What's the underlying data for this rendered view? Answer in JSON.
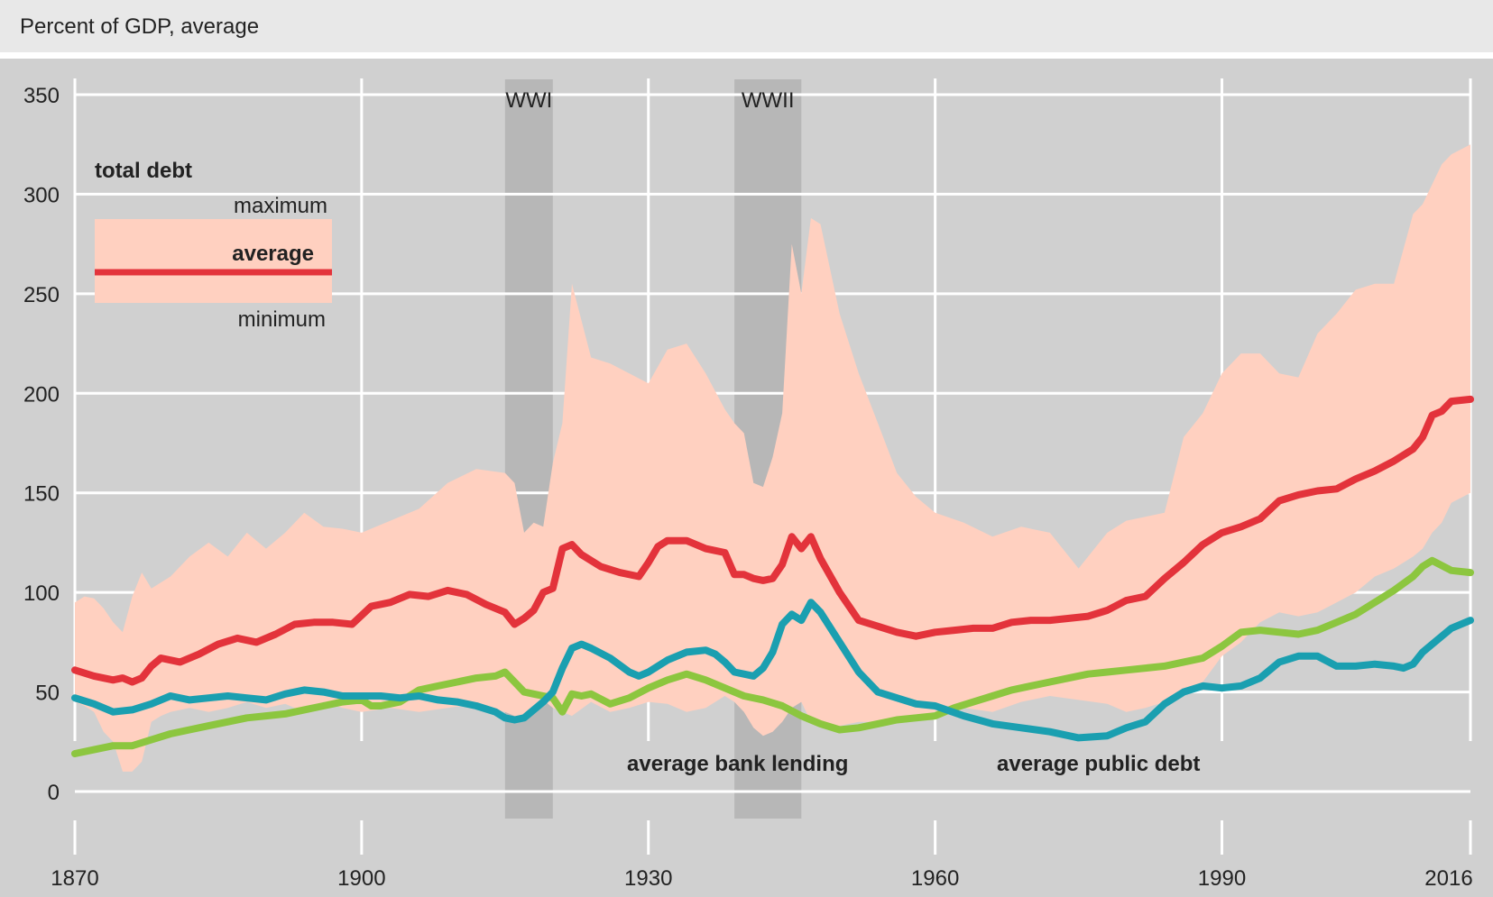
{
  "header": {
    "subtitle": "Percent of GDP, average"
  },
  "colors": {
    "total_debt": "#e3333b",
    "bank_lending": "#1a9fb0",
    "public_debt": "#8cc63f",
    "band": "#ffd0c0",
    "war_shade": "#b7b7b7",
    "background": "#d0d0d0",
    "grid": "#ffffff"
  },
  "chart_data": {
    "type": "line",
    "title": "",
    "subtitle": "Percent of GDP, average",
    "xlim": [
      1870,
      2016
    ],
    "ylim": [
      0,
      350
    ],
    "x_ticks": [
      1870,
      1900,
      1930,
      1960,
      1990,
      2016
    ],
    "y_ticks": [
      0,
      50,
      100,
      150,
      200,
      250,
      300,
      350
    ],
    "grid": true,
    "shaded_periods": [
      {
        "label": "WWI",
        "start": 1915,
        "end": 1920
      },
      {
        "label": "WWII",
        "start": 1939,
        "end": 1946
      }
    ],
    "legend": {
      "title": "total debt",
      "maximum": "maximum",
      "average": "average",
      "minimum": "minimum",
      "placement": "top-left"
    },
    "annotations": {
      "bank_lending": "average bank lending",
      "public_debt": "average public debt"
    },
    "band": {
      "name": "total debt range",
      "x": [
        1870,
        1871,
        1872,
        1873,
        1874,
        1875,
        1876,
        1877,
        1878,
        1879,
        1880,
        1882,
        1884,
        1886,
        1888,
        1890,
        1892,
        1894,
        1896,
        1898,
        1900,
        1903,
        1906,
        1909,
        1912,
        1915,
        1916,
        1917,
        1918,
        1919,
        1920,
        1921,
        1922,
        1924,
        1926,
        1928,
        1930,
        1932,
        1934,
        1936,
        1938,
        1939,
        1940,
        1941,
        1942,
        1943,
        1944,
        1945,
        1946,
        1947,
        1948,
        1950,
        1952,
        1954,
        1956,
        1958,
        1960,
        1963,
        1966,
        1969,
        1972,
        1975,
        1978,
        1980,
        1982,
        1984,
        1986,
        1988,
        1990,
        1992,
        1994,
        1996,
        1998,
        2000,
        2002,
        2004,
        2006,
        2008,
        2010,
        2011,
        2012,
        2013,
        2014,
        2016
      ],
      "max": [
        95,
        98,
        97,
        92,
        85,
        80,
        98,
        110,
        102,
        105,
        108,
        118,
        125,
        118,
        130,
        122,
        130,
        140,
        133,
        132,
        130,
        136,
        142,
        155,
        162,
        160,
        155,
        130,
        135,
        133,
        165,
        185,
        255,
        218,
        215,
        210,
        205,
        222,
        225,
        210,
        192,
        185,
        180,
        155,
        153,
        168,
        190,
        275,
        250,
        288,
        285,
        240,
        210,
        185,
        160,
        148,
        140,
        135,
        128,
        133,
        130,
        112,
        130,
        136,
        138,
        140,
        178,
        190,
        210,
        220,
        220,
        210,
        208,
        230,
        240,
        252,
        255,
        255,
        290,
        295,
        305,
        315,
        320,
        325
      ],
      "min": [
        45,
        43,
        40,
        30,
        25,
        10,
        10,
        15,
        35,
        38,
        40,
        42,
        40,
        42,
        45,
        42,
        44,
        40,
        45,
        42,
        40,
        42,
        40,
        42,
        44,
        40,
        38,
        35,
        42,
        46,
        42,
        40,
        38,
        45,
        40,
        42,
        45,
        44,
        40,
        42,
        48,
        45,
        40,
        32,
        28,
        30,
        35,
        42,
        45,
        35,
        32,
        33,
        35,
        35,
        37,
        38,
        40,
        42,
        40,
        45,
        48,
        46,
        44,
        40,
        42,
        45,
        50,
        55,
        68,
        75,
        85,
        90,
        88,
        90,
        95,
        100,
        108,
        112,
        118,
        122,
        130,
        135,
        145,
        150
      ]
    },
    "series": [
      {
        "name": "average",
        "x": [
          1870,
          1872,
          1874,
          1875,
          1876,
          1877,
          1878,
          1879,
          1881,
          1883,
          1885,
          1887,
          1889,
          1891,
          1893,
          1895,
          1897,
          1899,
          1901,
          1903,
          1905,
          1907,
          1909,
          1911,
          1913,
          1915,
          1916,
          1917,
          1918,
          1919,
          1920,
          1921,
          1922,
          1923,
          1925,
          1927,
          1929,
          1930,
          1931,
          1932,
          1934,
          1936,
          1938,
          1939,
          1940,
          1941,
          1942,
          1943,
          1944,
          1945,
          1946,
          1947,
          1948,
          1950,
          1952,
          1954,
          1956,
          1958,
          1960,
          1962,
          1964,
          1966,
          1968,
          1970,
          1972,
          1974,
          1976,
          1978,
          1980,
          1982,
          1984,
          1986,
          1988,
          1990,
          1992,
          1994,
          1996,
          1998,
          2000,
          2002,
          2004,
          2006,
          2008,
          2010,
          2011,
          2012,
          2013,
          2014,
          2016
        ],
        "values": [
          61,
          58,
          56,
          57,
          55,
          57,
          63,
          67,
          65,
          69,
          74,
          77,
          75,
          79,
          84,
          85,
          85,
          84,
          93,
          95,
          99,
          98,
          101,
          99,
          94,
          90,
          84,
          87,
          91,
          100,
          102,
          122,
          124,
          119,
          113,
          110,
          108,
          115,
          123,
          126,
          126,
          122,
          120,
          109,
          109,
          107,
          106,
          107,
          114,
          128,
          122,
          128,
          117,
          100,
          86,
          83,
          80,
          78,
          80,
          81,
          82,
          82,
          85,
          86,
          86,
          87,
          88,
          91,
          96,
          98,
          107,
          115,
          124,
          130,
          133,
          137,
          146,
          149,
          151,
          152,
          157,
          161,
          166,
          172,
          178,
          189,
          191,
          196,
          197
        ]
      },
      {
        "name": "average bank lending",
        "x": [
          1870,
          1872,
          1874,
          1876,
          1878,
          1880,
          1882,
          1884,
          1886,
          1888,
          1890,
          1892,
          1894,
          1896,
          1898,
          1900,
          1902,
          1904,
          1906,
          1908,
          1910,
          1912,
          1914,
          1915,
          1916,
          1917,
          1918,
          1919,
          1920,
          1921,
          1922,
          1923,
          1924,
          1926,
          1928,
          1929,
          1930,
          1931,
          1932,
          1933,
          1934,
          1936,
          1937,
          1938,
          1939,
          1940,
          1941,
          1942,
          1943,
          1944,
          1945,
          1946,
          1947,
          1948,
          1950,
          1952,
          1954,
          1956,
          1958,
          1960,
          1963,
          1966,
          1969,
          1972,
          1975,
          1978,
          1980,
          1982,
          1984,
          1986,
          1988,
          1990,
          1992,
          1994,
          1996,
          1998,
          2000,
          2002,
          2004,
          2006,
          2008,
          2009,
          2010,
          2011,
          2012,
          2014,
          2016
        ],
        "values": [
          47,
          44,
          40,
          41,
          44,
          48,
          46,
          47,
          48,
          47,
          46,
          49,
          51,
          50,
          48,
          48,
          48,
          47,
          48,
          46,
          45,
          43,
          40,
          37,
          36,
          37,
          41,
          45,
          50,
          62,
          72,
          74,
          72,
          67,
          60,
          58,
          60,
          63,
          66,
          68,
          70,
          71,
          69,
          65,
          60,
          59,
          58,
          62,
          70,
          84,
          89,
          86,
          95,
          90,
          75,
          60,
          50,
          47,
          44,
          43,
          38,
          34,
          32,
          30,
          27,
          28,
          32,
          35,
          44,
          50,
          53,
          52,
          53,
          57,
          65,
          68,
          68,
          63,
          63,
          64,
          63,
          62,
          64,
          70,
          74,
          82,
          86
        ]
      },
      {
        "name": "average public debt",
        "x": [
          1870,
          1872,
          1874,
          1876,
          1878,
          1880,
          1882,
          1884,
          1886,
          1888,
          1890,
          1892,
          1894,
          1896,
          1898,
          1900,
          1901,
          1902,
          1904,
          1905,
          1906,
          1908,
          1910,
          1912,
          1914,
          1915,
          1916,
          1917,
          1918,
          1919,
          1920,
          1921,
          1922,
          1923,
          1924,
          1926,
          1928,
          1930,
          1932,
          1934,
          1936,
          1938,
          1940,
          1942,
          1944,
          1946,
          1948,
          1950,
          1952,
          1954,
          1956,
          1958,
          1960,
          1962,
          1964,
          1966,
          1968,
          1970,
          1972,
          1974,
          1976,
          1978,
          1980,
          1982,
          1984,
          1986,
          1988,
          1990,
          1992,
          1994,
          1996,
          1998,
          2000,
          2002,
          2004,
          2006,
          2008,
          2010,
          2011,
          2012,
          2014,
          2016
        ],
        "values": [
          19,
          21,
          23,
          23,
          26,
          29,
          31,
          33,
          35,
          37,
          38,
          39,
          41,
          43,
          45,
          46,
          43,
          43,
          45,
          48,
          51,
          53,
          55,
          57,
          58,
          60,
          55,
          50,
          49,
          48,
          47,
          40,
          49,
          48,
          49,
          44,
          47,
          52,
          56,
          59,
          56,
          52,
          48,
          46,
          43,
          38,
          34,
          31,
          32,
          34,
          36,
          37,
          38,
          42,
          45,
          48,
          51,
          53,
          55,
          57,
          59,
          60,
          61,
          62,
          63,
          65,
          67,
          73,
          80,
          81,
          80,
          79,
          81,
          85,
          89,
          95,
          101,
          108,
          113,
          116,
          111,
          110
        ]
      }
    ]
  }
}
